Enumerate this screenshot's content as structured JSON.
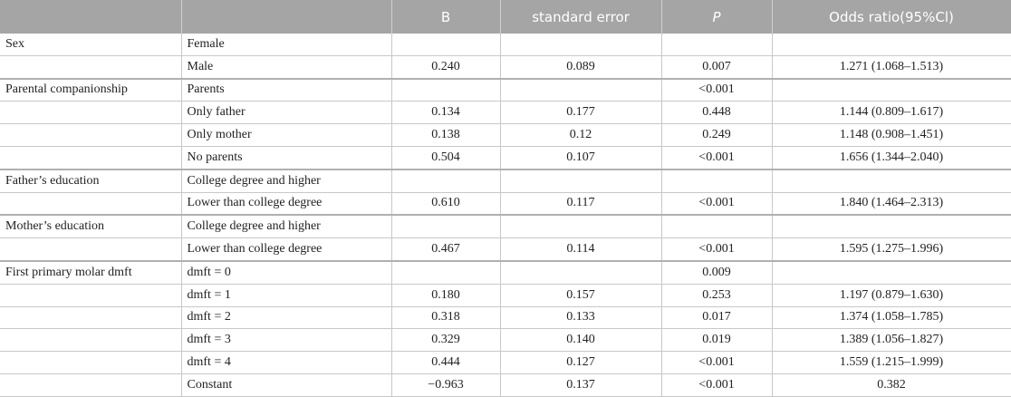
{
  "table": {
    "header": {
      "b": "B",
      "se": "standard error",
      "p": "P",
      "or": "Odds ratio(95%Cl)"
    },
    "rows": [
      {
        "group": "Sex",
        "level": "Female"
      },
      {
        "level": "Male",
        "b": "0.240",
        "se": "0.089",
        "p": "0.007",
        "or": "1.271 (1.068–1.513)"
      },
      {
        "group": "Parental companionship",
        "level": "Parents",
        "p": "<0.001"
      },
      {
        "level": "Only father",
        "b": "0.134",
        "se": "0.177",
        "p": "0.448",
        "or": "1.144 (0.809–1.617)"
      },
      {
        "level": "Only mother",
        "b": "0.138",
        "se": "0.12",
        "p": "0.249",
        "or": "1.148 (0.908–1.451)"
      },
      {
        "level": "No parents",
        "b": "0.504",
        "se": "0.107",
        "p": "<0.001",
        "or": "1.656 (1.344–2.040)"
      },
      {
        "group": "Father’s education",
        "level": "College degree and higher"
      },
      {
        "level": "Lower than college degree",
        "b": "0.610",
        "se": "0.117",
        "p": "<0.001",
        "or": "1.840 (1.464–2.313)"
      },
      {
        "group": "Mother’s education",
        "level": "College degree and higher"
      },
      {
        "level": "Lower than college degree",
        "b": "0.467",
        "se": "0.114",
        "p": "<0.001",
        "or": "1.595 (1.275–1.996)"
      },
      {
        "group": "First primary molar dmft",
        "level": "dmft = 0",
        "p": "0.009"
      },
      {
        "level": "dmft = 1",
        "b": "0.180",
        "se": "0.157",
        "p": "0.253",
        "or": "1.197 (0.879–1.630)"
      },
      {
        "level": "dmft = 2",
        "b": "0.318",
        "se": "0.133",
        "p": "0.017",
        "or": "1.374 (1.058–1.785)"
      },
      {
        "level": "dmft = 3",
        "b": "0.329",
        "se": "0.140",
        "p": "0.019",
        "or": "1.389 (1.056–1.827)"
      },
      {
        "level": "dmft = 4",
        "b": "0.444",
        "se": "0.127",
        "p": "<0.001",
        "or": "1.559 (1.215–1.999)"
      },
      {
        "level": "Constant",
        "b": "−0.963",
        "se": "0.137",
        "p": "<0.001",
        "or": "0.382"
      }
    ]
  }
}
